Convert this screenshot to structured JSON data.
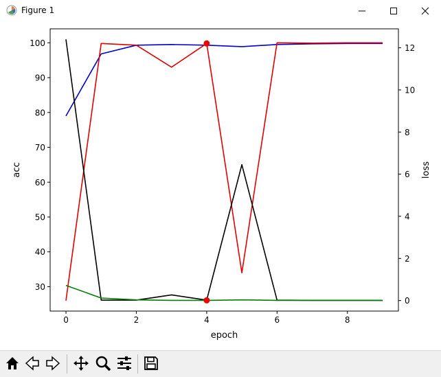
{
  "window": {
    "title": "Figure 1",
    "app_icon": "matplotlib-icon",
    "buttons": [
      "minimize-icon",
      "maximize-icon",
      "close-icon"
    ]
  },
  "toolbar": {
    "tools": [
      "home-icon",
      "back-icon",
      "forward-icon",
      "pan-icon",
      "zoom-icon",
      "configure-subplots-icon",
      "save-icon"
    ]
  },
  "chart_data": {
    "type": "line",
    "xlabel": "epoch",
    "ylabel": "acc",
    "y2label": "loss",
    "xlim": [
      -0.45,
      9.45
    ],
    "ylim": [
      23,
      104
    ],
    "y2lim": [
      -0.5,
      12.9
    ],
    "xticks": [
      0,
      2,
      4,
      6,
      8
    ],
    "yticks": [
      30,
      40,
      50,
      60,
      70,
      80,
      90,
      100
    ],
    "y2ticks": [
      0,
      2,
      4,
      6,
      8,
      10,
      12
    ],
    "x": [
      0,
      1,
      2,
      3,
      4,
      5,
      6,
      7,
      8,
      9
    ],
    "series": [
      {
        "axis": "left",
        "color": "#0000cc",
        "values": [
          79,
          96.8,
          99.3,
          99.5,
          99.3,
          98.9,
          99.5,
          99.7,
          99.8,
          99.8
        ]
      },
      {
        "axis": "left",
        "color": "#e00000",
        "values": [
          26,
          99.8,
          99.3,
          93,
          99.8,
          34,
          100,
          99.9,
          100,
          100
        ],
        "markers": [
          {
            "x": 4,
            "y": 99.8
          }
        ]
      },
      {
        "axis": "right",
        "color": "#000000",
        "values": [
          12.4,
          0.02,
          0.02,
          0.27,
          0.02,
          6.45,
          0.02,
          0.01,
          0.01,
          0.01
        ]
      },
      {
        "axis": "right",
        "color": "#008000",
        "values": [
          0.72,
          0.12,
          0.03,
          0.01,
          0.01,
          0.03,
          0.01,
          0.01,
          0.01,
          0.01
        ],
        "markers": [
          {
            "x": 4,
            "y": 0.01
          }
        ]
      }
    ],
    "marker_color": "#ee0000"
  }
}
